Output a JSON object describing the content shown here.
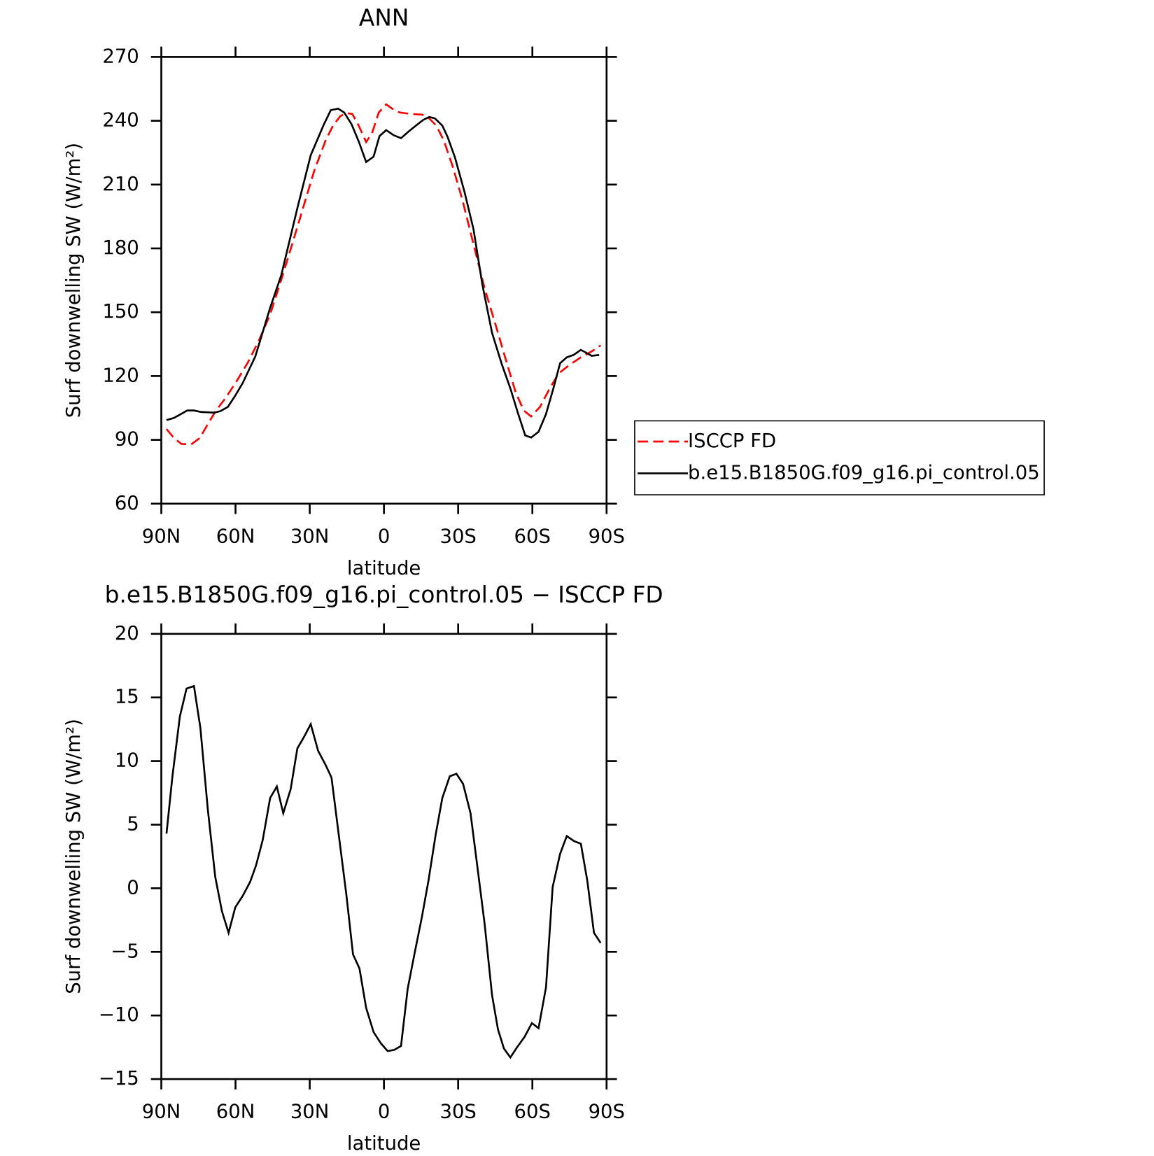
{
  "chart_data": [
    {
      "type": "line",
      "title": "ANN",
      "xlabel": "latitude",
      "ylabel": "Surf downwelling SW (W/m²)",
      "xlim": [
        90,
        -90
      ],
      "ylim": [
        60,
        270
      ],
      "xticks": [
        {
          "value": 90,
          "label": "90N"
        },
        {
          "value": 60,
          "label": "60N"
        },
        {
          "value": 30,
          "label": "30N"
        },
        0,
        {
          "value": -30,
          "label": "30S"
        },
        {
          "value": -60,
          "label": "60S"
        },
        {
          "value": -90,
          "label": "90S"
        }
      ],
      "yticks": [
        60,
        90,
        120,
        150,
        180,
        210,
        240,
        270
      ],
      "legend": "right",
      "series": [
        {
          "name": "ISCCP FD",
          "color": "#ff0000",
          "linestyle": "dashed",
          "x": [
            87.9,
            84.9,
            81.9,
            78.0,
            74.4,
            71.5,
            67.9,
            64.0,
            59.5,
            55.0,
            50.5,
            46.0,
            41.6,
            37.1,
            32.6,
            28.1,
            23.6,
            20.6,
            17.6,
            15.2,
            12.8,
            10.2,
            7.2,
            4.8,
            2.1,
            -0.9,
            -3.3,
            -6.3,
            -10.8,
            -15.3,
            -17.7,
            -21.2,
            -24.2,
            -27.8,
            -31.7,
            -36.2,
            -40.7,
            -45.2,
            -49.6,
            -53.2,
            -56.5,
            -59.5,
            -63.1,
            -66.7,
            -70.6,
            -75.1,
            -79.6,
            -84.0,
            -87.6
          ],
          "values": [
            95.1,
            90.9,
            88.1,
            87.8,
            90.9,
            96.8,
            103.8,
            109.7,
            117.7,
            126.4,
            136.8,
            149.0,
            164.9,
            182.0,
            199.4,
            216.8,
            230.7,
            237.7,
            242.2,
            243.6,
            243.2,
            237.7,
            230.0,
            234.2,
            243.9,
            247.7,
            245.7,
            243.9,
            243.2,
            242.9,
            241.8,
            237.7,
            230.7,
            218.5,
            202.9,
            182.0,
            161.2,
            143.8,
            126.4,
            112.5,
            103.8,
            101.0,
            105.5,
            113.5,
            121.2,
            125.3,
            128.8,
            131.6,
            134.4
          ]
        },
        {
          "name": "b.e15.B1850G.f09_g16.pi_control.05",
          "color": "#000000",
          "linestyle": "solid",
          "x": [
            87.9,
            84.9,
            79.5,
            76.8,
            73.9,
            68.5,
            66.1,
            63.1,
            60.1,
            57.1,
            52.0,
            46.0,
            41.5,
            38.5,
            34.9,
            29.6,
            24.5,
            21.5,
            18.5,
            16.1,
            13.1,
            10.1,
            7.2,
            4.2,
            1.8,
            -0.9,
            -3.9,
            -6.9,
            -9.9,
            -12.9,
            -15.9,
            -18.3,
            -20.6,
            -23.6,
            -25.7,
            -28.7,
            -32.6,
            -36.2,
            -39.8,
            -43.7,
            -47.6,
            -51.1,
            -54.1,
            -57.1,
            -59.5,
            -62.5,
            -65.5,
            -68.5,
            -71.2,
            -73.9,
            -76.6,
            -79.6,
            -81.8,
            -84.0,
            -87.0
          ],
          "values": [
            99.3,
            100.3,
            103.8,
            103.8,
            103.1,
            102.8,
            103.5,
            105.5,
            110.8,
            116.7,
            129.2,
            152.1,
            167.4,
            182.0,
            199.4,
            223.8,
            237.7,
            245.0,
            245.7,
            243.9,
            238.4,
            230.0,
            220.6,
            223.1,
            232.8,
            235.6,
            233.2,
            231.8,
            234.9,
            237.7,
            240.4,
            241.8,
            241.1,
            237.7,
            232.5,
            222.8,
            206.4,
            189.0,
            162.9,
            140.3,
            125.7,
            114.2,
            102.8,
            92.1,
            91.1,
            93.8,
            102.1,
            114.2,
            126.0,
            128.8,
            129.9,
            132.3,
            130.9,
            129.5,
            129.9
          ]
        }
      ]
    },
    {
      "type": "line",
      "title": "b.e15.B1850G.f09_g16.pi_control.05 − ISCCP FD",
      "xlabel": "latitude",
      "ylabel": "Surf downwelling SW (W/m²)",
      "xlim": [
        90,
        -90
      ],
      "ylim": [
        -15,
        20
      ],
      "xticks": [
        {
          "value": 90,
          "label": "90N"
        },
        {
          "value": 60,
          "label": "60N"
        },
        {
          "value": 30,
          "label": "30N"
        },
        0,
        {
          "value": -30,
          "label": "30S"
        },
        {
          "value": -60,
          "label": "60S"
        },
        {
          "value": -90,
          "label": "90S"
        }
      ],
      "yticks": [
        {
          "value": -15,
          "label": "−15"
        },
        {
          "value": -10,
          "label": "−10"
        },
        {
          "value": -5,
          "label": "−5"
        },
        0,
        5,
        10,
        15,
        20
      ],
      "series": [
        {
          "color": "#000000",
          "linestyle": "solid",
          "x": [
            87.9,
            85.5,
            82.5,
            79.8,
            76.8,
            74.2,
            71.2,
            68.2,
            65.5,
            62.8,
            60.1,
            57.1,
            54.1,
            51.7,
            49.0,
            46.0,
            43.3,
            40.7,
            37.7,
            35.0,
            32.3,
            29.6,
            26.6,
            23.6,
            21.2,
            18.2,
            15.2,
            12.5,
            9.9,
            7.2,
            4.2,
            1.2,
            -1.5,
            -4.2,
            -6.9,
            -9.6,
            -12.3,
            -15.3,
            -18.0,
            -20.9,
            -23.6,
            -26.6,
            -29.3,
            -32.0,
            -35.0,
            -37.7,
            -40.7,
            -43.7,
            -46.1,
            -48.5,
            -51.1,
            -53.8,
            -56.8,
            -59.8,
            -62.5,
            -65.5,
            -68.2,
            -71.2,
            -73.9,
            -76.9,
            -79.6,
            -82.2,
            -84.9,
            -87.6
          ],
          "values": [
            4.3,
            8.8,
            13.5,
            15.7,
            15.9,
            12.6,
            6.2,
            0.9,
            -1.8,
            -3.5,
            -1.5,
            -0.6,
            0.5,
            1.8,
            3.8,
            7.1,
            8.0,
            5.9,
            7.8,
            11.0,
            11.9,
            12.9,
            10.8,
            9.7,
            8.7,
            4.1,
            -0.5,
            -5.2,
            -6.3,
            -9.4,
            -11.3,
            -12.2,
            -12.8,
            -12.7,
            -12.4,
            -7.9,
            -5.2,
            -2.3,
            0.6,
            4.2,
            7.1,
            8.8,
            9.0,
            8.2,
            5.9,
            1.8,
            -2.8,
            -8.4,
            -11.1,
            -12.6,
            -13.3,
            -12.5,
            -11.7,
            -10.6,
            -11.0,
            -7.8,
            0.1,
            2.7,
            4.1,
            3.7,
            3.5,
            0.6,
            -3.5,
            -4.3
          ]
        }
      ]
    }
  ]
}
